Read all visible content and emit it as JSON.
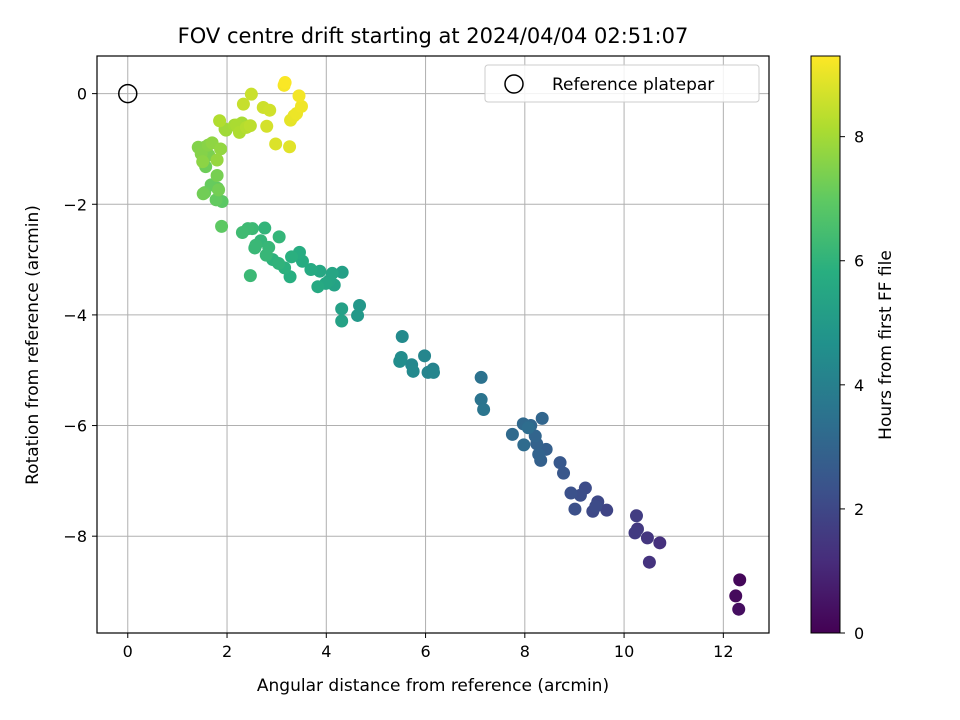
{
  "chart_data": {
    "type": "scatter",
    "title": "FOV centre drift starting at 2024/04/04 02:51:07",
    "xlabel": "Angular distance from reference (arcmin)",
    "ylabel": "Rotation from reference (arcmin)",
    "xlim": [
      -0.62,
      12.92
    ],
    "ylim": [
      -9.75,
      0.68
    ],
    "xticks": [
      0,
      2,
      4,
      6,
      8,
      10,
      12
    ],
    "yticks": [
      0,
      -2,
      -4,
      -6,
      -8
    ],
    "grid": true,
    "legend": {
      "entries": [
        "Reference platepar"
      ],
      "position": "top-right"
    },
    "colorbar": {
      "label": "Hours from first FF file",
      "range": [
        0,
        9.3
      ],
      "ticks": [
        0,
        2,
        4,
        6,
        8
      ],
      "colormap": "viridis"
    },
    "reference_point": {
      "x": 0,
      "y": 0,
      "marker": "open-circle"
    },
    "colors": {
      "grid": "#b0b0b0",
      "axis": "#000000",
      "marker_edge": "#000000"
    },
    "series": [
      {
        "x": [
          12.33,
          12.25,
          12.31,
          10.72,
          10.51,
          10.47,
          10.27,
          10.22,
          10.25,
          9.65,
          9.47,
          9.37,
          9.43,
          9.22,
          9.12,
          9.01,
          8.93,
          8.78,
          8.71,
          8.43,
          8.32,
          8.24,
          8.28,
          8.21,
          8.35,
          8.12,
          7.97,
          7.75,
          7.98,
          8.07,
          7.12,
          7.12,
          7.17,
          6.15,
          6.05,
          6.16,
          5.98,
          5.72,
          5.75,
          5.53,
          5.51,
          5.48,
          4.67,
          4.63,
          4.32,
          4.31,
          4.31,
          4.16,
          4.06,
          4.12,
          3.99,
          3.87,
          3.83,
          3.69,
          3.52,
          3.46,
          3.27,
          3.3,
          3.16,
          2.92,
          3.04,
          2.76,
          2.68,
          2.84,
          2.56,
          2.51,
          2.42,
          2.31,
          3.05,
          2.79,
          2.58,
          2.47,
          1.9,
          1.89,
          1.81,
          1.78,
          1.68,
          1.55,
          1.57,
          1.52,
          1.83,
          1.8,
          1.63,
          1.55,
          1.42,
          1.48,
          1.62,
          1.51,
          1.7,
          1.87,
          1.8,
          1.98,
          1.96,
          2.15,
          2.3,
          2.19,
          2.25,
          1.85,
          2.39,
          2.47,
          2.33,
          2.49,
          2.73,
          2.86,
          2.8,
          2.98,
          3.26,
          3.28,
          3.35,
          3.4,
          3.5,
          3.45,
          3.15,
          3.17
        ],
        "y": [
          -8.79,
          -9.08,
          -9.32,
          -8.12,
          -8.47,
          -8.03,
          -7.87,
          -7.94,
          -7.63,
          -7.53,
          -7.38,
          -7.55,
          -7.46,
          -7.13,
          -7.26,
          -7.51,
          -7.22,
          -6.86,
          -6.67,
          -6.43,
          -6.63,
          -6.33,
          -6.52,
          -6.19,
          -5.87,
          -6.0,
          -5.97,
          -6.16,
          -6.35,
          -6.04,
          -5.13,
          -5.53,
          -5.71,
          -4.98,
          -5.04,
          -5.04,
          -4.74,
          -4.9,
          -5.02,
          -4.39,
          -4.77,
          -4.84,
          -3.83,
          -4.01,
          -3.23,
          -3.89,
          -4.11,
          -3.46,
          -3.38,
          -3.25,
          -3.43,
          -3.21,
          -3.49,
          -3.18,
          -3.03,
          -2.87,
          -3.31,
          -2.95,
          -3.15,
          -3.0,
          -3.07,
          -2.43,
          -2.66,
          -2.78,
          -2.79,
          -2.44,
          -2.44,
          -2.51,
          -2.59,
          -2.92,
          -2.74,
          -3.29,
          -1.95,
          -2.4,
          -1.71,
          -1.92,
          -1.65,
          -1.79,
          -1.32,
          -1.81,
          -1.74,
          -1.48,
          -1.11,
          -0.97,
          -0.97,
          -1.09,
          -0.93,
          -1.23,
          -0.89,
          -1.0,
          -1.2,
          -0.66,
          -0.64,
          -0.57,
          -0.53,
          -0.57,
          -0.7,
          -0.49,
          -0.61,
          -0.58,
          -0.19,
          -0.01,
          -0.25,
          -0.3,
          -0.59,
          -0.91,
          -0.96,
          -0.48,
          -0.4,
          -0.36,
          -0.23,
          -0.04,
          0.15,
          0.2
        ],
        "hours": [
          0.15,
          0.25,
          0.35,
          1.3,
          1.35,
          1.45,
          1.55,
          1.6,
          1.65,
          1.9,
          2.0,
          2.05,
          2.1,
          2.15,
          2.2,
          2.25,
          2.3,
          2.5,
          2.55,
          2.8,
          2.85,
          2.9,
          2.95,
          3.0,
          3.05,
          3.1,
          3.15,
          3.2,
          3.25,
          3.3,
          3.5,
          3.55,
          3.6,
          4.1,
          4.15,
          4.2,
          4.25,
          4.3,
          4.35,
          4.4,
          4.45,
          4.5,
          4.9,
          4.95,
          5.2,
          5.25,
          5.3,
          5.35,
          5.4,
          5.45,
          5.5,
          5.55,
          5.6,
          5.65,
          5.7,
          5.75,
          5.8,
          5.85,
          5.9,
          5.95,
          6.0,
          6.05,
          6.1,
          6.15,
          6.2,
          6.25,
          6.3,
          6.35,
          6.1,
          6.15,
          6.2,
          6.25,
          6.9,
          6.95,
          7.0,
          7.05,
          7.1,
          7.15,
          7.2,
          7.25,
          7.3,
          7.35,
          7.4,
          7.45,
          7.5,
          7.55,
          7.6,
          7.65,
          7.7,
          7.75,
          7.8,
          7.9,
          7.95,
          8.0,
          8.05,
          8.1,
          8.15,
          8.2,
          8.25,
          8.35,
          8.5,
          8.55,
          8.6,
          8.65,
          8.7,
          8.8,
          8.9,
          8.95,
          9.0,
          9.05,
          9.1,
          9.15,
          9.2,
          9.25
        ]
      }
    ]
  }
}
